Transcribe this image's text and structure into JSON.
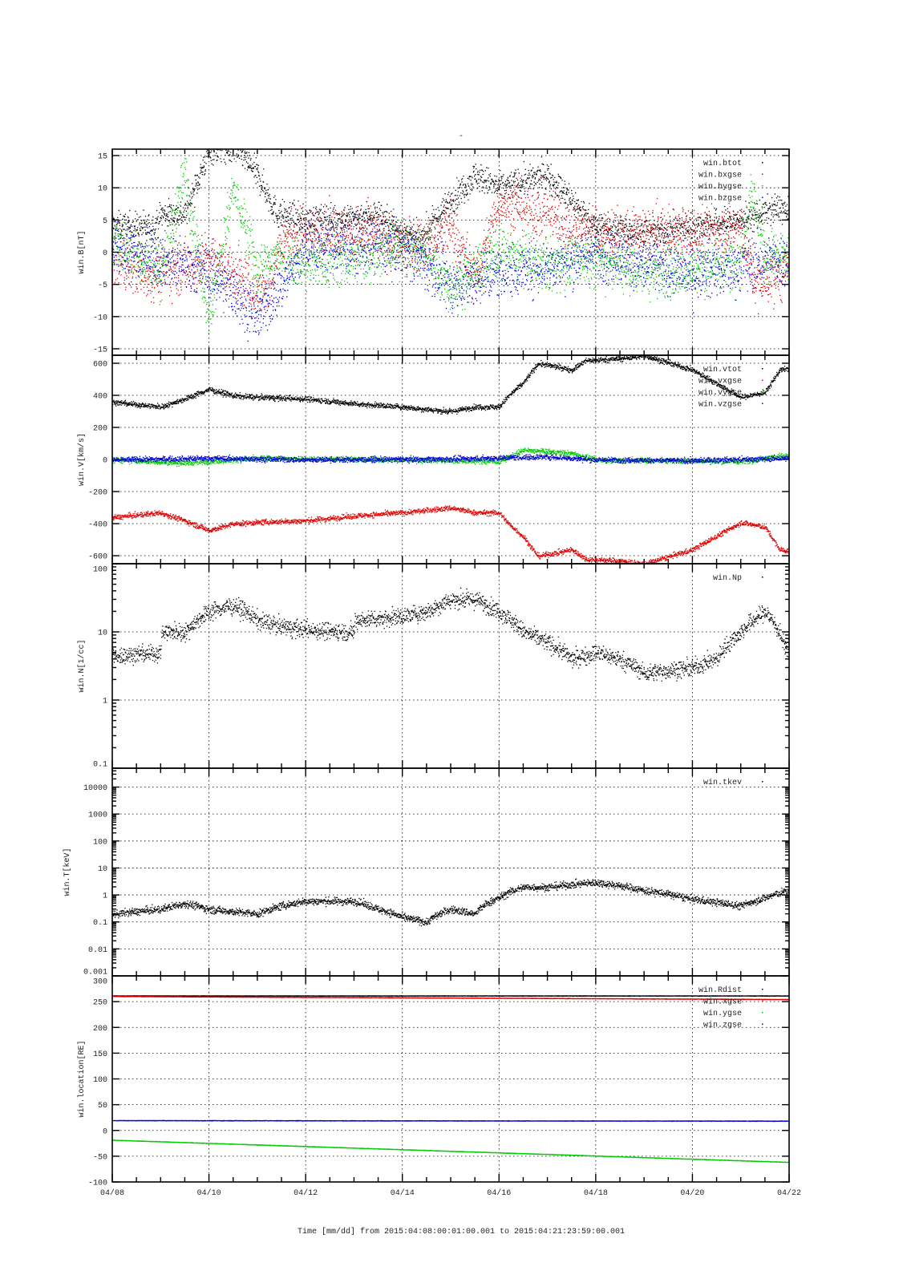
{
  "title": "-",
  "xlabel": "Time [mm/dd]  from 2015:04:08:00:01:00.001  to  2015:04:21:23:59:00.001",
  "colors": {
    "black": "#000000",
    "red": "#e00000",
    "green": "#00cc00",
    "blue": "#0000e0"
  },
  "chart_data": [
    {
      "type": "scatter",
      "ylabel": "win.B[nT]",
      "yscale": "linear",
      "ylim": [
        -16,
        16
      ],
      "yticks": [
        -15,
        -10,
        -5,
        0,
        5,
        10,
        15
      ],
      "noise": 1.6,
      "series": [
        {
          "name": "win.btot",
          "color": "black",
          "points": [
            [
              0,
              4
            ],
            [
              0.9,
              4
            ],
            [
              1,
              6
            ],
            [
              1.5,
              6
            ],
            [
              1.8,
              12
            ],
            [
              2,
              16
            ],
            [
              2.6,
              16
            ],
            [
              3,
              12
            ],
            [
              3.4,
              6
            ],
            [
              4,
              5
            ],
            [
              5,
              5.5
            ],
            [
              5.5,
              6
            ],
            [
              6,
              3
            ],
            [
              6.2,
              2
            ],
            [
              6.4,
              2.5
            ],
            [
              7,
              8
            ],
            [
              7.5,
              12
            ],
            [
              8,
              10
            ],
            [
              8.5,
              11
            ],
            [
              9,
              12
            ],
            [
              9.5,
              8
            ],
            [
              10,
              4
            ],
            [
              11,
              3
            ],
            [
              12,
              4
            ],
            [
              13,
              5
            ],
            [
              13.8,
              7
            ],
            [
              14,
              6
            ]
          ]
        },
        {
          "name": "win.bxgse",
          "color": "red",
          "points": [
            [
              0,
              -1
            ],
            [
              0.5,
              -3
            ],
            [
              1,
              -3
            ],
            [
              1.5,
              -2
            ],
            [
              2,
              -1
            ],
            [
              2.5,
              -3
            ],
            [
              2.9,
              -6
            ],
            [
              3.2,
              -6
            ],
            [
              3.5,
              2
            ],
            [
              4,
              3
            ],
            [
              5,
              3
            ],
            [
              6,
              1
            ],
            [
              6.5,
              1
            ],
            [
              7,
              4
            ],
            [
              7.5,
              -4
            ],
            [
              8,
              8
            ],
            [
              8.5,
              7
            ],
            [
              9,
              6
            ],
            [
              9.5,
              4
            ],
            [
              10,
              3
            ],
            [
              11,
              3
            ],
            [
              12,
              3
            ],
            [
              13,
              4
            ],
            [
              13.3,
              -5
            ],
            [
              14,
              -3
            ]
          ]
        },
        {
          "name": "win.bygse",
          "color": "green",
          "points": [
            [
              0,
              2
            ],
            [
              1,
              -3
            ],
            [
              1.5,
              12
            ],
            [
              2,
              -10
            ],
            [
              2.5,
              10
            ],
            [
              3,
              -3
            ],
            [
              3.5,
              0
            ],
            [
              4,
              -2
            ],
            [
              5,
              -1
            ],
            [
              6,
              1
            ],
            [
              6.5,
              0
            ],
            [
              7,
              -6
            ],
            [
              8,
              0
            ],
            [
              9,
              -2
            ],
            [
              10,
              -1
            ],
            [
              11,
              -3
            ],
            [
              12,
              -3
            ],
            [
              13,
              -1
            ],
            [
              13.2,
              10
            ],
            [
              13.5,
              0
            ],
            [
              14,
              -1
            ]
          ]
        },
        {
          "name": "win.bzgse",
          "color": "blue",
          "points": [
            [
              0,
              1
            ],
            [
              1,
              -1
            ],
            [
              2,
              -3
            ],
            [
              2.5,
              -6
            ],
            [
              3,
              -10
            ],
            [
              3.5,
              -5
            ],
            [
              4,
              1
            ],
            [
              5,
              1
            ],
            [
              6,
              1
            ],
            [
              7,
              -5
            ],
            [
              8,
              -3
            ],
            [
              9,
              -2
            ],
            [
              10,
              0
            ],
            [
              11,
              -2
            ],
            [
              12,
              -3
            ],
            [
              13,
              -2
            ],
            [
              14,
              -1
            ]
          ]
        }
      ]
    },
    {
      "type": "scatter",
      "ylabel": "win.V[km/s]",
      "yscale": "linear",
      "ylim": [
        -650,
        650
      ],
      "yticks": [
        -600,
        -400,
        -200,
        0,
        200,
        400,
        600
      ],
      "noise": 12,
      "series": [
        {
          "name": "win.vtot",
          "color": "black",
          "points": [
            [
              0,
              360
            ],
            [
              1,
              330
            ],
            [
              1.5,
              380
            ],
            [
              2,
              440
            ],
            [
              2.5,
              400
            ],
            [
              3,
              390
            ],
            [
              4,
              380
            ],
            [
              5,
              350
            ],
            [
              6,
              330
            ],
            [
              7,
              300
            ],
            [
              7.5,
              330
            ],
            [
              8,
              330
            ],
            [
              8.2,
              400
            ],
            [
              8.5,
              480
            ],
            [
              8.8,
              600
            ],
            [
              9.2,
              580
            ],
            [
              9.5,
              560
            ],
            [
              9.8,
              620
            ],
            [
              10.5,
              630
            ],
            [
              11,
              650
            ],
            [
              12,
              560
            ],
            [
              13,
              390
            ],
            [
              13.5,
              420
            ],
            [
              13.8,
              560
            ],
            [
              14,
              570
            ]
          ]
        },
        {
          "name": "win.vxgse",
          "color": "red",
          "points": [
            [
              0,
              -360
            ],
            [
              1,
              -330
            ],
            [
              1.5,
              -380
            ],
            [
              2,
              -440
            ],
            [
              2.5,
              -400
            ],
            [
              3,
              -390
            ],
            [
              4,
              -380
            ],
            [
              5,
              -350
            ],
            [
              6,
              -330
            ],
            [
              7,
              -300
            ],
            [
              7.5,
              -330
            ],
            [
              8,
              -330
            ],
            [
              8.2,
              -400
            ],
            [
              8.5,
              -480
            ],
            [
              8.8,
              -600
            ],
            [
              9.2,
              -580
            ],
            [
              9.5,
              -560
            ],
            [
              9.8,
              -620
            ],
            [
              10.5,
              -630
            ],
            [
              11,
              -650
            ],
            [
              12,
              -560
            ],
            [
              13,
              -390
            ],
            [
              13.5,
              -420
            ],
            [
              13.8,
              -560
            ],
            [
              14,
              -570
            ]
          ]
        },
        {
          "name": "win.vygse",
          "color": "green",
          "points": [
            [
              0,
              0
            ],
            [
              1.5,
              -20
            ],
            [
              3,
              10
            ],
            [
              6,
              0
            ],
            [
              8,
              -10
            ],
            [
              8.5,
              60
            ],
            [
              9.5,
              40
            ],
            [
              10,
              0
            ],
            [
              13,
              -10
            ],
            [
              14,
              30
            ]
          ]
        },
        {
          "name": "win.vzgse",
          "color": "blue",
          "points": [
            [
              0,
              0
            ],
            [
              2,
              10
            ],
            [
              4,
              0
            ],
            [
              7,
              5
            ],
            [
              9,
              20
            ],
            [
              10,
              0
            ],
            [
              12,
              -5
            ],
            [
              14,
              10
            ]
          ]
        }
      ]
    },
    {
      "type": "scatter",
      "ylabel": "win.N[1/cc]",
      "yscale": "log",
      "ylim": [
        0.1,
        100
      ],
      "yticks": [
        0.1,
        1,
        10,
        100
      ],
      "noise": 0.09,
      "series": [
        {
          "name": "win.Np",
          "color": "black",
          "points": [
            [
              0,
              4.5
            ],
            [
              1,
              5
            ],
            [
              1.01,
              10
            ],
            [
              1.5,
              10
            ],
            [
              2,
              20
            ],
            [
              2.5,
              25
            ],
            [
              3,
              15
            ],
            [
              3.5,
              12
            ],
            [
              4,
              11
            ],
            [
              5,
              10
            ],
            [
              5.01,
              15
            ],
            [
              6,
              17
            ],
            [
              6.5,
              20
            ],
            [
              7,
              30
            ],
            [
              7.5,
              30
            ],
            [
              8,
              20
            ],
            [
              8.5,
              10
            ],
            [
              9,
              7
            ],
            [
              9.5,
              4
            ],
            [
              10,
              5
            ],
            [
              10.5,
              4
            ],
            [
              11,
              2.5
            ],
            [
              12,
              3
            ],
            [
              12.5,
              4
            ],
            [
              13,
              10
            ],
            [
              13.5,
              20
            ],
            [
              13.9,
              6
            ],
            [
              14,
              6
            ]
          ]
        }
      ]
    },
    {
      "type": "scatter",
      "ylabel": "win.T[keV]",
      "yscale": "log",
      "ylim": [
        0.001,
        50000
      ],
      "yticks": [
        0.001,
        0.01,
        0.1,
        1,
        10,
        100,
        1000,
        10000
      ],
      "noise": 0.1,
      "series": [
        {
          "name": "win.tkev",
          "color": "black",
          "points": [
            [
              0,
              0.2
            ],
            [
              1,
              0.3
            ],
            [
              1.5,
              0.5
            ],
            [
              2,
              0.3
            ],
            [
              3,
              0.2
            ],
            [
              4,
              0.6
            ],
            [
              5,
              0.6
            ],
            [
              5.5,
              0.3
            ],
            [
              6,
              0.15
            ],
            [
              6.5,
              0.1
            ],
            [
              7,
              0.3
            ],
            [
              7.5,
              0.2
            ],
            [
              8,
              0.8
            ],
            [
              8.5,
              2
            ],
            [
              9,
              2
            ],
            [
              10,
              3
            ],
            [
              11,
              1.5
            ],
            [
              12,
              0.7
            ],
            [
              13,
              0.4
            ],
            [
              13.5,
              0.8
            ],
            [
              14,
              1.5
            ]
          ]
        }
      ]
    },
    {
      "type": "scatter",
      "ylabel": "win.location[RE]",
      "yscale": "linear",
      "ylim": [
        -100,
        300
      ],
      "yticks": [
        -100,
        -50,
        0,
        50,
        100,
        150,
        200,
        250,
        300
      ],
      "noise": 0.3,
      "series": [
        {
          "name": "win.Rdist",
          "color": "black",
          "points": [
            [
              0,
              262
            ],
            [
              14,
              262
            ]
          ]
        },
        {
          "name": "win.xgse",
          "color": "red",
          "points": [
            [
              0,
              261
            ],
            [
              14,
              255
            ]
          ]
        },
        {
          "name": "win.ygse",
          "color": "green",
          "points": [
            [
              0,
              -18
            ],
            [
              14,
              -61
            ]
          ]
        },
        {
          "name": "win.zgse",
          "color": "blue",
          "points": [
            [
              0,
              20
            ],
            [
              14,
              19
            ]
          ]
        }
      ]
    }
  ],
  "xaxis": {
    "xlim": [
      0,
      14
    ],
    "ticks": [
      0,
      2,
      4,
      6,
      8,
      10,
      12,
      14
    ],
    "tick_labels": [
      "04/08",
      "04/10",
      "04/12",
      "04/14",
      "04/16",
      "04/18",
      "04/20",
      "04/22"
    ]
  }
}
